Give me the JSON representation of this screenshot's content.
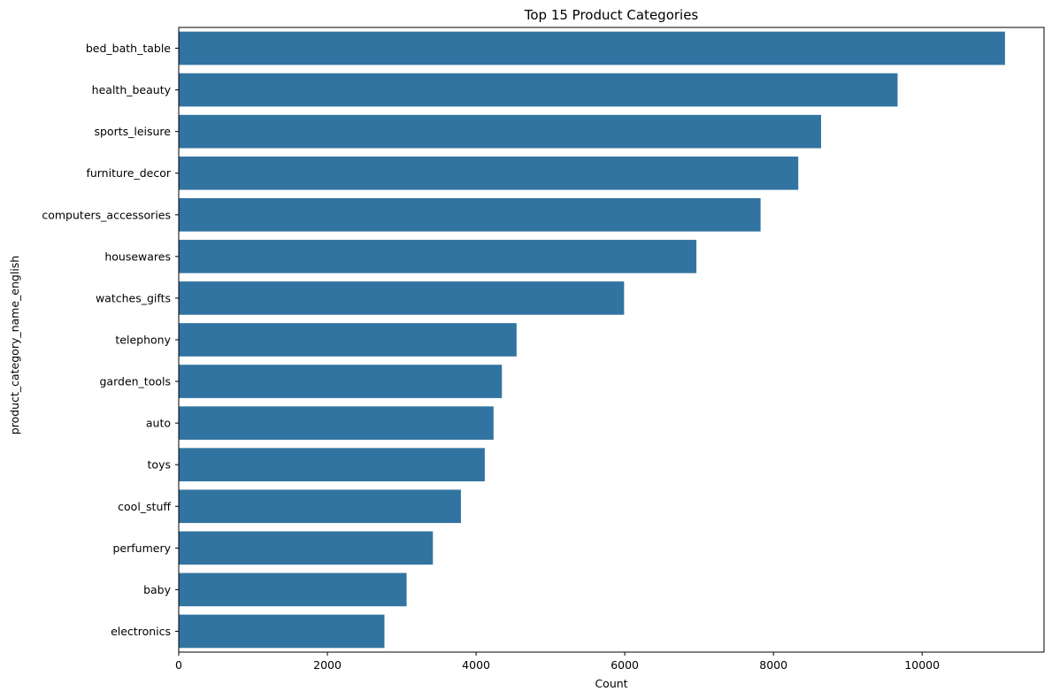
{
  "chart_data": {
    "type": "bar",
    "orientation": "horizontal",
    "title": "Top 15 Product Categories",
    "xlabel": "Count",
    "ylabel": "product_category_name_english",
    "xlim": [
      0,
      11640
    ],
    "xticks": [
      0,
      2000,
      4000,
      6000,
      8000,
      10000
    ],
    "categories": [
      "bed_bath_table",
      "health_beauty",
      "sports_leisure",
      "furniture_decor",
      "computers_accessories",
      "housewares",
      "watches_gifts",
      "telephony",
      "garden_tools",
      "auto",
      "toys",
      "cool_stuff",
      "perfumery",
      "baby",
      "electronics"
    ],
    "values": [
      11115,
      9670,
      8641,
      8334,
      7827,
      6964,
      5991,
      4545,
      4347,
      4235,
      4117,
      3796,
      3419,
      3065,
      2767
    ],
    "bar_color": "#3274a1",
    "grid": false,
    "legend": "none"
  }
}
